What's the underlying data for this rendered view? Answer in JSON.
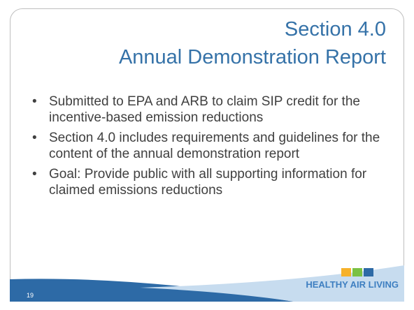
{
  "title": {
    "line1": "Section 4.0",
    "line2": "Annual Demonstration Report"
  },
  "bullets": [
    "Submitted to EPA and ARB to claim SIP credit for the incentive-based emission reductions",
    "Section 4.0 includes requirements and guidelines for the content of the annual demonstration report",
    "Goal: Provide public with all supporting information for claimed emissions reductions"
  ],
  "footer": {
    "page_number": "19",
    "logo_text": "HEALTHY AIR LIVING"
  }
}
